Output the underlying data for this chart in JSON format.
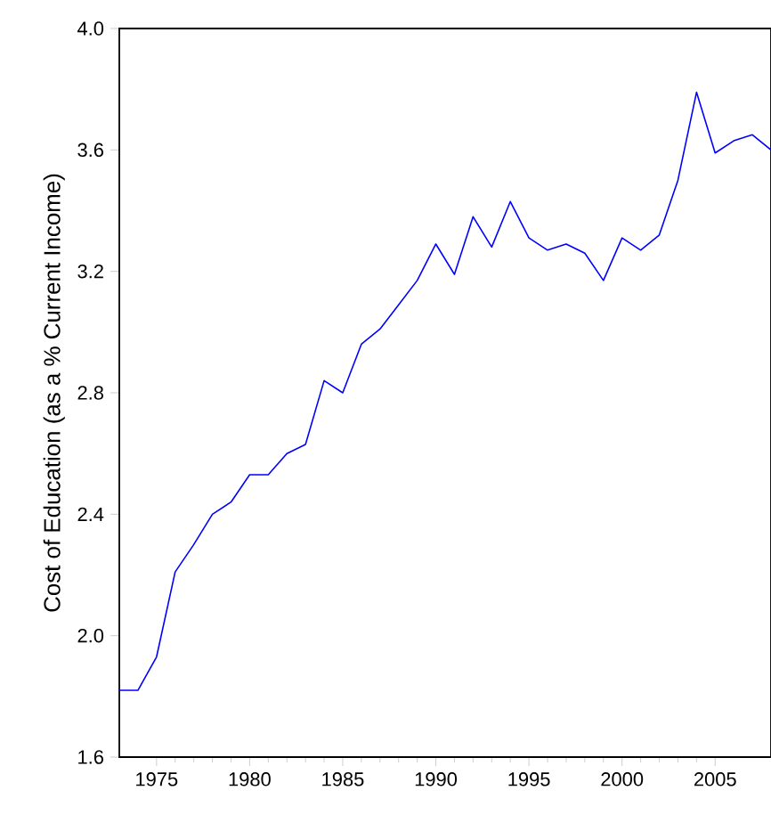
{
  "chart_data": {
    "type": "line",
    "ylabel": "Cost of Education (as a % Current Income)",
    "x": [
      1973,
      1974,
      1975,
      1976,
      1977,
      1978,
      1979,
      1980,
      1981,
      1982,
      1983,
      1984,
      1985,
      1986,
      1987,
      1988,
      1989,
      1990,
      1991,
      1992,
      1993,
      1994,
      1995,
      1996,
      1997,
      1998,
      1999,
      2000,
      2001,
      2002,
      2003,
      2004,
      2005,
      2006,
      2007,
      2008
    ],
    "series": [
      {
        "color": "#0000ff",
        "values": [
          1.82,
          1.82,
          1.93,
          2.21,
          2.3,
          2.4,
          2.44,
          2.53,
          2.53,
          2.6,
          2.63,
          2.84,
          2.8,
          2.96,
          3.01,
          3.09,
          3.17,
          3.29,
          3.19,
          3.38,
          3.28,
          3.43,
          3.31,
          3.27,
          3.29,
          3.26,
          3.17,
          3.31,
          3.27,
          3.32,
          3.5,
          3.79,
          3.59,
          3.63,
          3.65,
          3.6
        ]
      }
    ],
    "xlim": [
      1973,
      2008
    ],
    "xticks": [
      1975,
      1980,
      1985,
      1990,
      1995,
      2000,
      2005
    ],
    "ylim": [
      1.6,
      4.0
    ],
    "yticks": [
      {
        "value": 1.6,
        "label": "1.6"
      },
      {
        "value": 2.0,
        "label": "2.0"
      },
      {
        "value": 2.4,
        "label": "2.4"
      },
      {
        "value": 2.8,
        "label": "2.8"
      },
      {
        "value": 3.2,
        "label": "3.2"
      },
      {
        "value": 3.6,
        "label": "3.6"
      },
      {
        "value": 4.0,
        "label": "4.0"
      }
    ],
    "grid": false,
    "marker": "none",
    "line_style": "solid"
  }
}
